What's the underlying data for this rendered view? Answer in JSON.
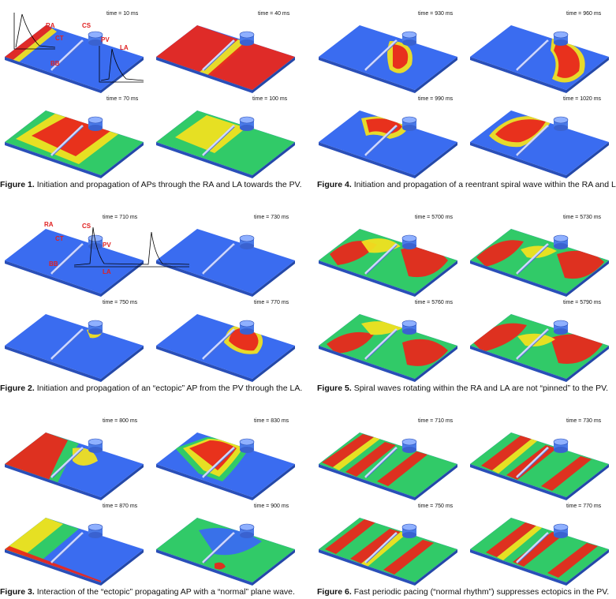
{
  "figures": [
    {
      "id": "fig1",
      "label": "Figure 1.",
      "caption": "Initiation and propagation of APs through the RA and LA towards the PV.",
      "panels": [
        {
          "time": "time = 10 ms",
          "pattern": "edge"
        },
        {
          "time": "time = 40 ms",
          "pattern": "split"
        },
        {
          "time": "time = 70 ms",
          "pattern": "gradient"
        },
        {
          "time": "time = 100 ms",
          "pattern": "gradient2"
        }
      ],
      "annotations": [
        "RA",
        "CT",
        "CS",
        "PV",
        "LA",
        "BB"
      ]
    },
    {
      "id": "fig4",
      "label": "Figure 4.",
      "caption": "Initiation and propagation of a reentrant spiral wave within the RA and LA.",
      "panels": [
        {
          "time": "time = 930 ms",
          "pattern": "blob"
        },
        {
          "time": "time = 960 ms",
          "pattern": "spiralR"
        },
        {
          "time": "time = 990 ms",
          "pattern": "spiralL"
        },
        {
          "time": "time = 1020 ms",
          "pattern": "spiralL2"
        }
      ]
    },
    {
      "id": "fig2",
      "label": "Figure 2.",
      "caption": "Initiation and propagation of an “ectopic” AP from the PV through the LA.",
      "panels": [
        {
          "time": "time = 710 ms",
          "pattern": "blue"
        },
        {
          "time": "time = 730 ms",
          "pattern": "blue"
        },
        {
          "time": "time = 750 ms",
          "pattern": "pvonly"
        },
        {
          "time": "time = 770 ms",
          "pattern": "halfdisk"
        }
      ],
      "annotations": [
        "RA",
        "CT",
        "CS",
        "PV",
        "BB",
        "LA"
      ]
    },
    {
      "id": "fig5",
      "label": "Figure 5.",
      "caption": "Spiral waves rotating within the RA and LA are not “pinned” to the PV.",
      "panels": [
        {
          "time": "time = 5700 ms",
          "pattern": "double"
        },
        {
          "time": "time = 5730 ms",
          "pattern": "double2"
        },
        {
          "time": "time = 5760 ms",
          "pattern": "double3"
        },
        {
          "time": "time = 5790 ms",
          "pattern": "double4"
        }
      ]
    },
    {
      "id": "fig3",
      "label": "Figure 3.",
      "caption": "Interaction of the “ectopic” propagating AP with a “normal” plane wave.",
      "panels": [
        {
          "time": "time = 800 ms",
          "pattern": "corner"
        },
        {
          "time": "time = 830 ms",
          "pattern": "bands"
        },
        {
          "time": "time = 870 ms",
          "pattern": "leftgrad"
        },
        {
          "time": "time = 900 ms",
          "pattern": "greenmix"
        }
      ]
    },
    {
      "id": "fig6",
      "label": "Figure 6.",
      "caption": "Fast periodic pacing (“normal rhythm”) suppresses ectopics in the PV.",
      "panels": [
        {
          "time": "time = 710 ms",
          "pattern": "stripes"
        },
        {
          "time": "time = 730 ms",
          "pattern": "stripes2"
        },
        {
          "time": "time = 750 ms",
          "pattern": "stripes3"
        },
        {
          "time": "time = 770 ms",
          "pattern": "stripes4"
        }
      ]
    }
  ],
  "colors": {
    "tissue_blue": "#3a6cf0",
    "excited_red": "#e8281c",
    "front_yellow": "#f0e020",
    "front_green": "#30d060",
    "annotation_red": "#e02020"
  }
}
